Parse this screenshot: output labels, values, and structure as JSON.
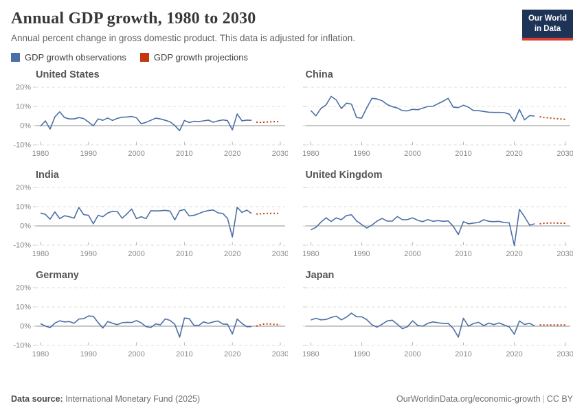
{
  "header": {
    "title": "Annual GDP growth, 1980 to 2030",
    "subtitle": "Annual percent change in gross domestic product. This data is adjusted for inflation."
  },
  "logo": {
    "line1": "Our World",
    "line2": "in Data",
    "bg_color": "#1d3456",
    "accent_color": "#dc3d33"
  },
  "legend": [
    {
      "label": "GDP growth observations",
      "color": "#4c6fa5"
    },
    {
      "label": "GDP growth projections",
      "color": "#c4380d"
    }
  ],
  "axes": {
    "y_tick_labels": [
      "20%",
      "10%",
      "0%",
      "-10%"
    ],
    "y_tick_values": [
      20,
      10,
      0,
      -10
    ],
    "x_tick_values": [
      1980,
      1990,
      2000,
      2010,
      2020,
      2030
    ],
    "ylim": [
      -10,
      20
    ],
    "xlim": [
      1979,
      2031
    ],
    "grid": "dashed horizontal, solid zero line"
  },
  "chart_data": [
    {
      "type": "line",
      "country": "United States",
      "obs_start_year": 1980,
      "observations": [
        -0.3,
        2.5,
        -1.8,
        4.6,
        7.2,
        4.2,
        3.5,
        3.5,
        4.2,
        3.7,
        1.9,
        -0.1,
        3.5,
        2.8,
        4.0,
        2.7,
        3.8,
        4.4,
        4.5,
        4.8,
        4.1,
        1.0,
        1.7,
        2.8,
        3.9,
        3.5,
        2.8,
        2.0,
        0.1,
        -2.6,
        2.7,
        1.6,
        2.3,
        2.1,
        2.5,
        2.9,
        1.8,
        2.5,
        3.0,
        2.6,
        -2.2,
        6.1,
        2.5,
        2.9,
        2.8
      ],
      "proj_start_year": 2025,
      "projections": [
        1.8,
        1.7,
        1.9,
        2.0,
        2.1,
        2.1
      ]
    },
    {
      "type": "line",
      "country": "China",
      "obs_start_year": 1980,
      "observations": [
        7.9,
        5.1,
        9.0,
        10.8,
        15.2,
        13.4,
        8.9,
        11.7,
        11.2,
        4.2,
        3.9,
        9.3,
        14.2,
        13.9,
        13.0,
        11.0,
        9.9,
        9.2,
        7.8,
        7.7,
        8.5,
        8.3,
        9.1,
        10.0,
        10.1,
        11.4,
        12.7,
        14.2,
        9.6,
        9.4,
        10.6,
        9.6,
        7.8,
        7.8,
        7.4,
        7.0,
        6.9,
        6.9,
        6.8,
        6.0,
        2.2,
        8.4,
        3.0,
        5.2,
        5.0
      ],
      "proj_start_year": 2025,
      "projections": [
        4.6,
        4.2,
        4.0,
        3.7,
        3.5,
        3.3
      ]
    },
    {
      "type": "line",
      "country": "India",
      "obs_start_year": 1980,
      "observations": [
        6.7,
        6.0,
        3.5,
        7.3,
        3.8,
        5.3,
        4.8,
        4.0,
        9.6,
        5.9,
        5.5,
        1.1,
        5.5,
        4.8,
        6.7,
        7.6,
        7.5,
        4.0,
        6.2,
        8.8,
        3.8,
        4.8,
        3.8,
        7.9,
        7.8,
        7.9,
        8.1,
        7.7,
        3.1,
        7.9,
        8.5,
        5.2,
        5.5,
        6.4,
        7.4,
        8.0,
        8.3,
        6.8,
        6.5,
        3.9,
        -5.8,
        9.7,
        7.0,
        8.2,
        6.5
      ],
      "proj_start_year": 2025,
      "projections": [
        6.2,
        6.3,
        6.5,
        6.5,
        6.5,
        6.5
      ]
    },
    {
      "type": "line",
      "country": "United Kingdom",
      "obs_start_year": 1980,
      "observations": [
        -2.0,
        -0.8,
        2.0,
        4.2,
        2.3,
        4.2,
        3.2,
        5.4,
        5.8,
        2.6,
        0.7,
        -1.1,
        0.4,
        2.5,
        3.9,
        2.5,
        2.5,
        4.9,
        3.2,
        3.3,
        4.2,
        2.9,
        2.2,
        3.3,
        2.4,
        2.8,
        2.4,
        2.6,
        -0.2,
        -4.5,
        2.2,
        1.1,
        1.5,
        1.8,
        3.2,
        2.4,
        2.2,
        2.4,
        1.7,
        1.6,
        -10.3,
        8.6,
        4.8,
        0.4,
        1.1
      ],
      "proj_start_year": 2025,
      "projections": [
        1.1,
        1.4,
        1.5,
        1.5,
        1.4,
        1.4
      ]
    },
    {
      "type": "line",
      "country": "Germany",
      "obs_start_year": 1980,
      "observations": [
        1.3,
        0.1,
        -0.8,
        1.6,
        2.8,
        2.2,
        2.4,
        1.5,
        3.7,
        3.9,
        5.3,
        5.1,
        1.9,
        -1.0,
        2.4,
        1.5,
        0.8,
        1.8,
        2.0,
        1.9,
        2.9,
        1.7,
        -0.2,
        -0.7,
        1.2,
        0.7,
        3.8,
        3.0,
        1.0,
        -5.7,
        4.2,
        3.9,
        0.4,
        0.4,
        2.2,
        1.5,
        2.2,
        2.7,
        1.1,
        1.0,
        -4.1,
        3.7,
        1.4,
        -0.3,
        -0.2
      ],
      "proj_start_year": 2025,
      "projections": [
        0.0,
        0.9,
        1.2,
        1.1,
        0.9,
        0.8
      ]
    },
    {
      "type": "line",
      "country": "Japan",
      "obs_start_year": 1980,
      "observations": [
        3.2,
        4.1,
        3.3,
        3.5,
        4.5,
        5.2,
        3.3,
        4.7,
        6.8,
        4.9,
        4.9,
        3.4,
        0.8,
        -0.5,
        1.0,
        2.7,
        3.1,
        1.0,
        -1.3,
        -0.3,
        2.8,
        0.4,
        0.0,
        1.5,
        2.2,
        1.8,
        1.4,
        1.5,
        -1.2,
        -5.7,
        4.1,
        0.0,
        1.4,
        2.0,
        0.3,
        1.6,
        0.8,
        1.7,
        0.6,
        -0.4,
        -4.2,
        2.7,
        0.9,
        1.5,
        0.1
      ],
      "proj_start_year": 2025,
      "projections": [
        0.6,
        0.6,
        0.6,
        0.6,
        0.6,
        0.6
      ]
    }
  ],
  "footer": {
    "source_label": "Data source:",
    "source": "International Monetary Fund (2025)",
    "url": "OurWorldinData.org/economic-growth",
    "separator": "|",
    "license": "CC BY"
  }
}
